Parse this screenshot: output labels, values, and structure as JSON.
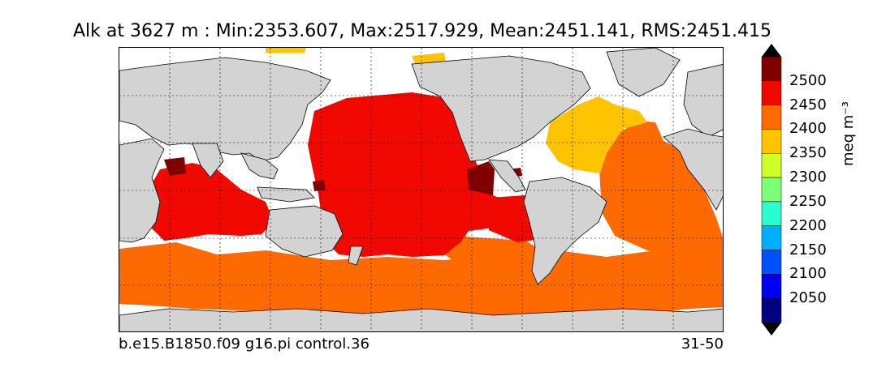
{
  "title": "Alk at 3627 m : Min:2353.607, Max:2517.929, Mean:2451.141, RMS:2451.415",
  "case_name": "b.e15.B1850.f09 g16.pi control.36",
  "years": "31-50",
  "colorbar": {
    "unit": "meq m⁻³",
    "ticks": [
      "2050",
      "2100",
      "2150",
      "2200",
      "2250",
      "2300",
      "2350",
      "2400",
      "2450",
      "2500"
    ],
    "bins": [
      {
        "from": 2000,
        "to": 2050,
        "color": "#000080"
      },
      {
        "from": 2050,
        "to": 2100,
        "color": "#0000f0"
      },
      {
        "from": 2100,
        "to": 2150,
        "color": "#0050ff"
      },
      {
        "from": 2150,
        "to": 2200,
        "color": "#00b0ff"
      },
      {
        "from": 2200,
        "to": 2250,
        "color": "#29ffce"
      },
      {
        "from": 2250,
        "to": 2300,
        "color": "#7dff7a"
      },
      {
        "from": 2300,
        "to": 2350,
        "color": "#ceff29"
      },
      {
        "from": 2350,
        "to": 2400,
        "color": "#ffc400"
      },
      {
        "from": 2400,
        "to": 2450,
        "color": "#ff6a00"
      },
      {
        "from": 2450,
        "to": 2500,
        "color": "#f10800"
      },
      {
        "from": 2500,
        "to": 2550,
        "color": "#800000"
      }
    ],
    "extend": "both"
  },
  "map_colors": {
    "land": "#d3d3d3",
    "ocean_nodata": "#ffffff",
    "coast": "#000000",
    "grid": "#000000"
  },
  "grid": true
}
